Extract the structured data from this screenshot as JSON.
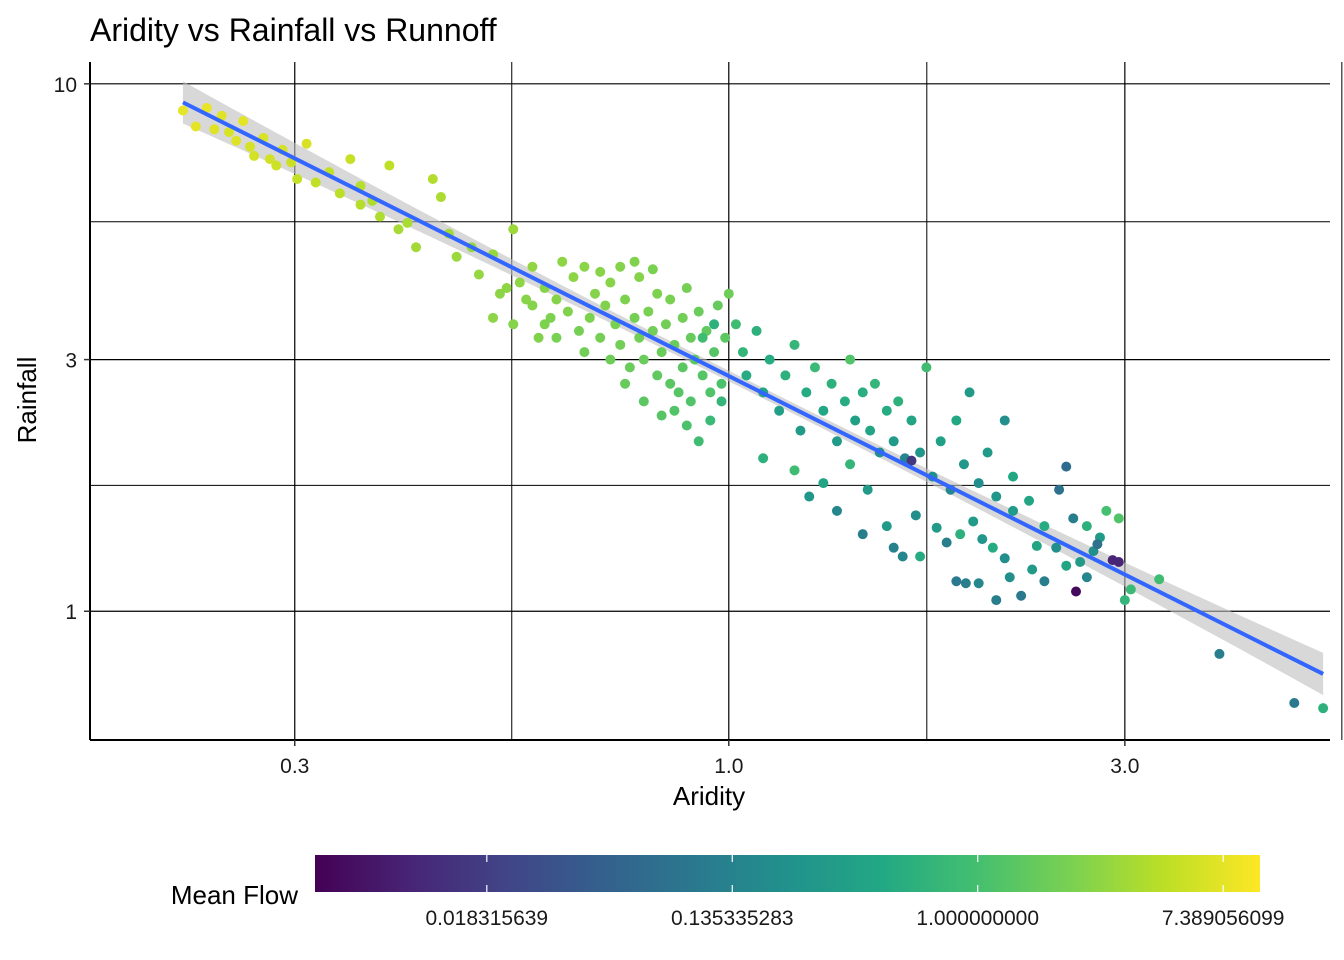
{
  "chart_data": {
    "type": "scatter",
    "title": "Aridity vs Rainfall vs Runnoff",
    "xlabel": "Aridity",
    "ylabel": "Rainfall",
    "xscale": "log10",
    "yscale": "log10",
    "xlim": [
      0.17,
      5.3
    ],
    "ylim": [
      0.57,
      11.0
    ],
    "xticks": [
      {
        "v": 0.3,
        "label": "0.3"
      },
      {
        "v": 1.0,
        "label": "1.0"
      },
      {
        "v": 3.0,
        "label": "3.0"
      }
    ],
    "xminor": [
      0.5477,
      1.732,
      5.477
    ],
    "yticks": [
      {
        "v": 10,
        "label": "10"
      },
      {
        "v": 3,
        "label": "3"
      },
      {
        "v": 1,
        "label": "1"
      }
    ],
    "yminor": [
      5.477,
      1.732
    ],
    "grid": true,
    "trend": {
      "method": "lm",
      "x_range": [
        0.22,
        5.2
      ],
      "intercept_log10": 0.446,
      "slope_log10": -0.789,
      "color": "#3366FF",
      "ribbon_color": "#BEBEBE"
    },
    "legend": {
      "title": "Mean Flow",
      "placement": "bottom",
      "scale": "log (natural)",
      "limits_ln": [
        -5.4,
        2.3
      ],
      "breaks": [
        {
          "v": 0.018315639,
          "label": "0.018315639"
        },
        {
          "v": 0.135335283,
          "label": "0.135335283"
        },
        {
          "v": 1.0,
          "label": "1.000000000"
        },
        {
          "v": 7.389056099,
          "label": "7.389056099"
        }
      ],
      "palette": "viridis"
    },
    "point_fields": [
      "aridity",
      "rainfall",
      "mean_flow"
    ],
    "points": [
      [
        0.22,
        8.9,
        7.5
      ],
      [
        0.228,
        8.3,
        7.2
      ],
      [
        0.235,
        9.0,
        7.8
      ],
      [
        0.24,
        8.2,
        6.9
      ],
      [
        0.245,
        8.7,
        7.0
      ],
      [
        0.25,
        8.1,
        6.5
      ],
      [
        0.255,
        7.8,
        6.8
      ],
      [
        0.26,
        8.5,
        7.3
      ],
      [
        0.265,
        7.6,
        6.2
      ],
      [
        0.268,
        7.3,
        6.0
      ],
      [
        0.275,
        7.9,
        6.4
      ],
      [
        0.28,
        7.2,
        5.9
      ],
      [
        0.285,
        7.0,
        5.6
      ],
      [
        0.29,
        7.5,
        6.1
      ],
      [
        0.297,
        7.1,
        5.5
      ],
      [
        0.302,
        6.6,
        5.0
      ],
      [
        0.31,
        7.7,
        6.3
      ],
      [
        0.318,
        6.5,
        4.8
      ],
      [
        0.33,
        6.8,
        4.9
      ],
      [
        0.34,
        6.2,
        4.5
      ],
      [
        0.35,
        7.2,
        5.2
      ],
      [
        0.36,
        5.9,
        4.2
      ],
      [
        0.372,
        6.0,
        4.0
      ],
      [
        0.38,
        5.6,
        3.9
      ],
      [
        0.39,
        7.0,
        4.6
      ],
      [
        0.4,
        5.3,
        3.6
      ],
      [
        0.41,
        5.45,
        3.7
      ],
      [
        0.42,
        4.9,
        3.4
      ],
      [
        0.45,
        6.1,
        3.8
      ],
      [
        0.46,
        5.2,
        3.4
      ],
      [
        0.47,
        4.7,
        3.1
      ],
      [
        0.5,
        4.35,
        2.9
      ],
      [
        0.52,
        4.75,
        3.0
      ],
      [
        0.55,
        5.3,
        3.2
      ],
      [
        0.56,
        4.2,
        2.7
      ],
      [
        0.44,
        6.6,
        4.1
      ],
      [
        0.36,
        6.4,
        4.3
      ],
      [
        0.49,
        4.9,
        3.0
      ],
      [
        0.53,
        4.0,
        2.6
      ],
      [
        0.58,
        4.5,
        2.8
      ],
      [
        0.58,
        3.8,
        2.4
      ],
      [
        0.6,
        4.1,
        2.5
      ],
      [
        0.6,
        3.5,
        2.2
      ],
      [
        0.62,
        3.3,
        2.1
      ],
      [
        0.62,
        3.9,
        2.4
      ],
      [
        0.64,
        3.7,
        2.3
      ],
      [
        0.65,
        4.3,
        2.6
      ],
      [
        0.66,
        3.4,
        2.0
      ],
      [
        0.67,
        3.1,
        1.9
      ],
      [
        0.68,
        3.6,
        2.2
      ],
      [
        0.69,
        4.0,
        2.4
      ],
      [
        0.7,
        3.3,
        2.0
      ],
      [
        0.71,
        3.8,
        2.3
      ],
      [
        0.72,
        3.0,
        1.8
      ],
      [
        0.72,
        4.2,
        2.5
      ],
      [
        0.73,
        3.5,
        2.1
      ],
      [
        0.74,
        3.2,
        1.9
      ],
      [
        0.75,
        3.9,
        2.2
      ],
      [
        0.76,
        2.9,
        1.7
      ],
      [
        0.77,
        3.6,
        2.0
      ],
      [
        0.78,
        4.3,
        2.4
      ],
      [
        0.78,
        3.3,
        1.9
      ],
      [
        0.79,
        3.0,
        1.7
      ],
      [
        0.8,
        3.7,
        2.1
      ],
      [
        0.81,
        3.4,
        1.9
      ],
      [
        0.82,
        2.8,
        1.5
      ],
      [
        0.82,
        4.0,
        2.2
      ],
      [
        0.83,
        3.1,
        1.7
      ],
      [
        0.84,
        3.5,
        1.9
      ],
      [
        0.85,
        2.7,
        1.4
      ],
      [
        0.85,
        3.9,
        2.1
      ],
      [
        0.86,
        3.2,
        1.7
      ],
      [
        0.87,
        2.6,
        1.3
      ],
      [
        0.88,
        3.6,
        1.9
      ],
      [
        0.88,
        2.9,
        1.4
      ],
      [
        0.89,
        4.1,
        2.0
      ],
      [
        0.9,
        3.3,
        1.6
      ],
      [
        0.9,
        2.5,
        1.2
      ],
      [
        0.91,
        3.0,
        1.4
      ],
      [
        0.92,
        3.7,
        1.7
      ],
      [
        0.93,
        2.8,
        1.3
      ],
      [
        0.94,
        3.4,
        1.5
      ],
      [
        0.95,
        2.6,
        1.2
      ],
      [
        0.96,
        3.1,
        1.3
      ],
      [
        0.97,
        3.8,
        1.6
      ],
      [
        0.98,
        2.7,
        1.1
      ],
      [
        0.99,
        3.3,
        1.4
      ],
      [
        1.0,
        4.0,
        1.8
      ],
      [
        0.63,
        4.6,
        2.7
      ],
      [
        0.67,
        4.5,
        2.6
      ],
      [
        0.7,
        4.4,
        2.5
      ],
      [
        0.74,
        4.5,
        2.4
      ],
      [
        0.77,
        4.6,
        2.3
      ],
      [
        0.81,
        4.45,
        2.1
      ],
      [
        0.57,
        3.9,
        2.5
      ],
      [
        0.59,
        3.3,
        2.3
      ],
      [
        0.61,
        3.6,
        2.2
      ],
      [
        0.55,
        3.5,
        2.4
      ],
      [
        0.52,
        3.6,
        2.6
      ],
      [
        0.54,
        4.1,
        2.7
      ],
      [
        0.75,
        2.7,
        1.6
      ],
      [
        0.79,
        2.5,
        1.4
      ],
      [
        0.83,
        2.35,
        1.3
      ],
      [
        0.86,
        2.4,
        1.2
      ],
      [
        0.89,
        2.25,
        1.1
      ],
      [
        0.92,
        2.1,
        0.9
      ],
      [
        0.95,
        2.3,
        0.8
      ],
      [
        0.98,
        2.5,
        0.7
      ],
      [
        0.96,
        3.5,
        0.6
      ],
      [
        0.93,
        3.3,
        0.9
      ],
      [
        1.02,
        3.5,
        0.9
      ],
      [
        1.04,
        3.1,
        0.7
      ],
      [
        1.05,
        2.8,
        0.5
      ],
      [
        1.08,
        3.4,
        0.6
      ],
      [
        1.1,
        2.6,
        0.4
      ],
      [
        1.12,
        3.0,
        0.5
      ],
      [
        1.15,
        2.4,
        0.35
      ],
      [
        1.17,
        2.8,
        0.6
      ],
      [
        1.2,
        3.2,
        0.7
      ],
      [
        1.22,
        2.2,
        0.3
      ],
      [
        1.24,
        2.6,
        0.5
      ],
      [
        1.27,
        2.9,
        0.8
      ],
      [
        1.3,
        2.4,
        0.45
      ],
      [
        1.33,
        2.7,
        0.6
      ],
      [
        1.35,
        2.1,
        0.3
      ],
      [
        1.38,
        2.5,
        0.5
      ],
      [
        1.4,
        3.0,
        1.2
      ],
      [
        1.42,
        2.3,
        0.35
      ],
      [
        1.45,
        2.6,
        0.55
      ],
      [
        1.48,
        2.2,
        0.4
      ],
      [
        1.5,
        2.7,
        0.7
      ],
      [
        1.52,
        2.0,
        0.2
      ],
      [
        1.55,
        2.4,
        0.5
      ],
      [
        1.58,
        2.1,
        0.3
      ],
      [
        1.6,
        2.5,
        0.6
      ],
      [
        1.63,
        1.95,
        0.15
      ],
      [
        1.66,
        2.3,
        0.4
      ],
      [
        1.7,
        2.0,
        0.25
      ],
      [
        1.73,
        2.9,
        0.9
      ],
      [
        1.76,
        1.8,
        0.2
      ],
      [
        1.8,
        2.1,
        0.35
      ],
      [
        1.85,
        1.7,
        0.15
      ],
      [
        1.88,
        2.3,
        0.45
      ],
      [
        1.92,
        1.9,
        0.25
      ],
      [
        1.95,
        2.6,
        0.3
      ],
      [
        2.0,
        1.75,
        0.2
      ],
      [
        2.05,
        2.0,
        0.3
      ],
      [
        2.1,
        1.65,
        0.25
      ],
      [
        2.15,
        2.3,
        0.2
      ],
      [
        2.2,
        1.8,
        0.45
      ],
      [
        1.1,
        1.95,
        0.6
      ],
      [
        1.2,
        1.85,
        0.9
      ],
      [
        1.3,
        1.75,
        0.4
      ],
      [
        1.4,
        1.9,
        0.7
      ],
      [
        1.47,
        1.7,
        0.3
      ],
      [
        1.25,
        1.65,
        0.25
      ],
      [
        1.35,
        1.55,
        0.15
      ],
      [
        1.45,
        1.4,
        0.12
      ],
      [
        1.55,
        1.45,
        0.3
      ],
      [
        1.58,
        1.32,
        0.13
      ],
      [
        1.62,
        1.27,
        0.15
      ],
      [
        1.7,
        1.27,
        0.5
      ],
      [
        1.68,
        1.52,
        0.2
      ],
      [
        1.78,
        1.44,
        0.3
      ],
      [
        1.83,
        1.35,
        0.12
      ],
      [
        1.9,
        1.4,
        0.6
      ],
      [
        1.97,
        1.48,
        0.3
      ],
      [
        2.02,
        1.37,
        0.25
      ],
      [
        2.08,
        1.32,
        0.5
      ],
      [
        2.15,
        1.26,
        0.2
      ],
      [
        1.88,
        1.14,
        0.1
      ],
      [
        1.93,
        1.13,
        0.12
      ],
      [
        2.0,
        1.13,
        0.15
      ],
      [
        2.1,
        1.05,
        0.12
      ],
      [
        2.18,
        1.16,
        0.2
      ],
      [
        2.25,
        1.07,
        0.1
      ],
      [
        2.32,
        1.2,
        0.3
      ],
      [
        2.4,
        1.14,
        0.12
      ],
      [
        2.48,
        1.32,
        0.2
      ],
      [
        2.55,
        1.22,
        0.4
      ],
      [
        2.62,
        1.09,
        0.0055
      ],
      [
        2.7,
        1.16,
        0.15
      ],
      [
        2.75,
        1.3,
        0.2
      ],
      [
        2.8,
        1.38,
        0.3
      ],
      [
        2.9,
        1.25,
        0.01
      ],
      [
        2.95,
        1.24,
        0.01
      ],
      [
        3.0,
        1.05,
        0.7
      ],
      [
        3.05,
        1.1,
        0.8
      ],
      [
        3.3,
        1.15,
        0.9
      ],
      [
        2.6,
        1.5,
        0.12
      ],
      [
        2.4,
        1.45,
        0.5
      ],
      [
        2.3,
        1.62,
        0.4
      ],
      [
        2.5,
        1.7,
        0.08
      ],
      [
        2.7,
        1.45,
        0.6
      ],
      [
        2.85,
        1.55,
        1.0
      ],
      [
        2.95,
        1.5,
        1.2
      ],
      [
        2.2,
        1.55,
        0.3
      ],
      [
        2.55,
        1.88,
        0.07
      ],
      [
        1.66,
        1.93,
        0.015
      ],
      [
        3.9,
        0.83,
        0.12
      ],
      [
        4.8,
        0.67,
        0.1
      ],
      [
        5.2,
        0.655,
        0.6
      ],
      [
        2.78,
        1.34,
        0.08
      ],
      [
        2.35,
        1.33,
        0.4
      ],
      [
        2.65,
        1.24,
        0.3
      ]
    ]
  }
}
